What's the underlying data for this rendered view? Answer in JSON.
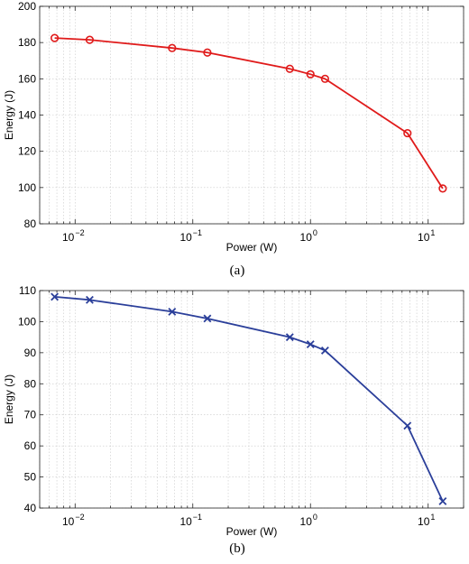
{
  "chart_data": [
    {
      "type": "line",
      "panel_label": "(a)",
      "xlabel": "Power (W)",
      "ylabel": "Energy (J)",
      "xscale": "log",
      "xlim": [
        0.005,
        20
      ],
      "ylim": [
        80,
        200
      ],
      "yticks": [
        80,
        100,
        120,
        140,
        160,
        180,
        200
      ],
      "xticks": [
        0.01,
        0.1,
        1,
        10
      ],
      "xtick_labels": [
        [
          "10",
          "−2"
        ],
        [
          "10",
          "−1"
        ],
        [
          "10",
          "0"
        ],
        [
          "10",
          "1"
        ]
      ],
      "grid": true,
      "color": "#e01b1b",
      "marker": "circle",
      "series": [
        {
          "x": [
            0.0067,
            0.0133,
            0.0667,
            0.133,
            0.667,
            1.0,
            1.33,
            6.67,
            13.3
          ],
          "y": [
            182.5,
            181.5,
            177,
            174.5,
            165.5,
            162.5,
            160,
            130,
            99.5
          ]
        }
      ]
    },
    {
      "type": "line",
      "panel_label": "(b)",
      "xlabel": "Power (W)",
      "ylabel": "Energy (J)",
      "xscale": "log",
      "xlim": [
        0.005,
        20
      ],
      "ylim": [
        40,
        110
      ],
      "yticks": [
        40,
        50,
        60,
        70,
        80,
        90,
        100,
        110
      ],
      "xticks": [
        0.01,
        0.1,
        1,
        10
      ],
      "xtick_labels": [
        [
          "10",
          "−2"
        ],
        [
          "10",
          "−1"
        ],
        [
          "10",
          "0"
        ],
        [
          "10",
          "1"
        ]
      ],
      "grid": true,
      "color": "#2b3f9a",
      "marker": "x",
      "series": [
        {
          "x": [
            0.0067,
            0.0133,
            0.0667,
            0.133,
            0.667,
            1.0,
            1.33,
            6.67,
            13.3
          ],
          "y": [
            108,
            107,
            103.2,
            101,
            95,
            92.7,
            90.7,
            66.5,
            42.2
          ]
        }
      ]
    }
  ]
}
